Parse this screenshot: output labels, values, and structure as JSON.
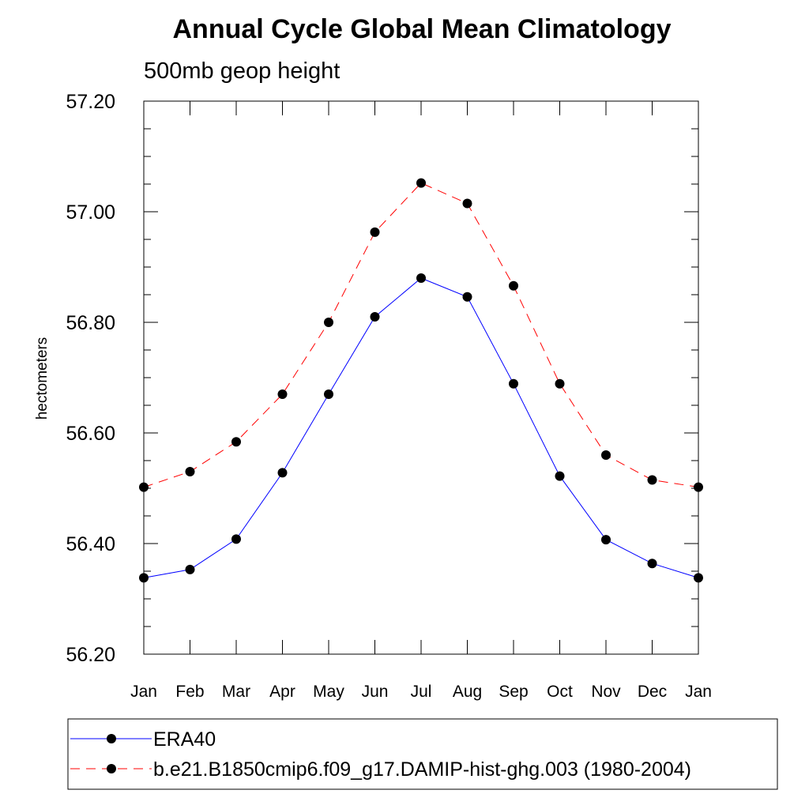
{
  "chart_data": {
    "type": "line",
    "title": "Annual Cycle Global Mean Climatology",
    "subtitle": "500mb geop height",
    "xlabel": "",
    "ylabel": "hectometers",
    "categories": [
      "Jan",
      "Feb",
      "Mar",
      "Apr",
      "May",
      "Jun",
      "Jul",
      "Aug",
      "Sep",
      "Oct",
      "Nov",
      "Dec",
      "Jan"
    ],
    "y_tick_labels": [
      "56.20",
      "56.40",
      "56.60",
      "56.80",
      "57.00",
      "57.20"
    ],
    "y_ticks": [
      56.2,
      56.4,
      56.6,
      56.8,
      57.0,
      57.2
    ],
    "ylim": [
      56.2,
      57.2
    ],
    "grid": false,
    "legend_position": "bottom",
    "series": [
      {
        "name": "ERA40",
        "color": "#0000ff",
        "line_style": "solid",
        "marker": "filled-circle",
        "values": [
          56.338,
          56.353,
          56.408,
          56.528,
          56.67,
          56.81,
          56.88,
          56.846,
          56.689,
          56.522,
          56.407,
          56.364,
          56.338
        ]
      },
      {
        "name": "b.e21.B1850cmip6.f09_g17.DAMIP-hist-ghg.003 (1980-2004)",
        "color": "#ff0000",
        "line_style": "dashed",
        "marker": "filled-circle",
        "values": [
          56.502,
          56.53,
          56.584,
          56.67,
          56.8,
          56.963,
          57.052,
          57.015,
          56.866,
          56.689,
          56.56,
          56.515,
          56.502
        ]
      }
    ]
  }
}
